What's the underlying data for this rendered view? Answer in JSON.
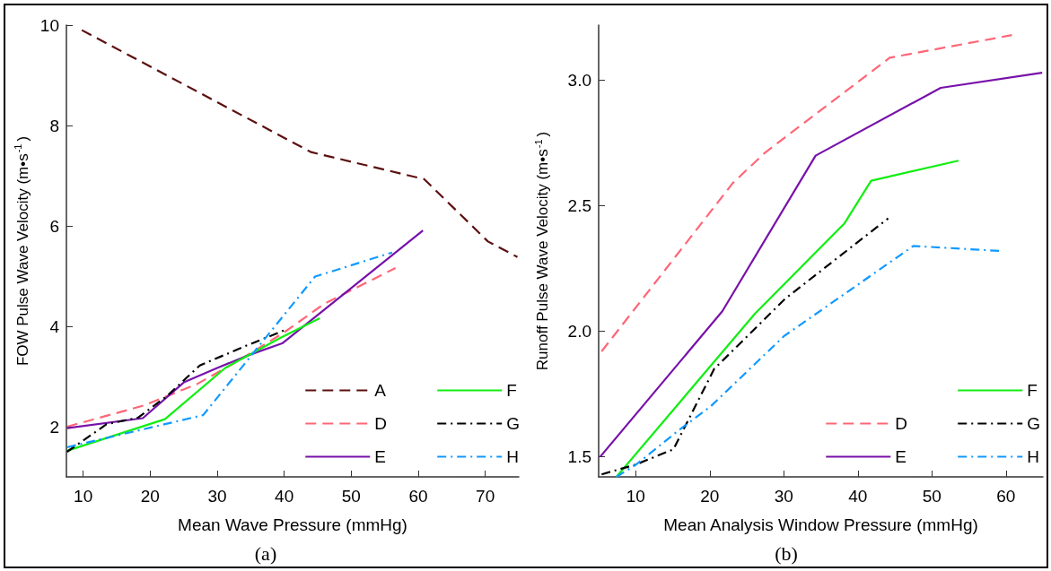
{
  "chart_data": [
    {
      "type": "line",
      "xlabel": "Mean Wave Pressure (mmHg)",
      "ylabel": "FOW Pulse Wave Velocity (m•s$^{-1}$)",
      "xlim": [
        7.5,
        75
      ],
      "xticks": [
        10,
        20,
        30,
        40,
        50,
        60,
        70
      ],
      "ylim": [
        1,
        10
      ],
      "yticks": [
        2,
        4,
        6,
        8,
        10
      ],
      "grid": false,
      "legend": "bottom right",
      "marker": "none",
      "annotations": [
        "(a)"
      ],
      "series": [
        {
          "name": "A",
          "color": "#5c1010",
          "line_style": "dashed",
          "x": [
            9.8,
            44,
            60.9,
            70.4,
            74.8
          ],
          "values": [
            9.9,
            7.47,
            6.93,
            5.69,
            5.38
          ]
        },
        {
          "name": "D",
          "color": "#ff6677",
          "line_style": "dashed",
          "x": [
            7.6,
            19,
            27,
            33,
            40,
            46,
            56.6
          ],
          "values": [
            2.0,
            2.42,
            2.85,
            3.3,
            3.88,
            4.45,
            5.16
          ]
        },
        {
          "name": "E",
          "color": "#7711aa",
          "line_style": "solid",
          "x": [
            7.6,
            18.9,
            25.1,
            30,
            35,
            39.7,
            50,
            60.7
          ],
          "values": [
            1.97,
            2.17,
            2.89,
            3.17,
            3.44,
            3.66,
            4.76,
            5.91
          ]
        },
        {
          "name": "F",
          "color": "#11ee11",
          "line_style": "solid",
          "x": [
            7.6,
            22.2,
            31.2,
            39.6,
            45.3
          ],
          "values": [
            1.52,
            2.15,
            3.17,
            3.78,
            4.16
          ]
        },
        {
          "name": "G",
          "color": "#000000",
          "line_style": "dashdot",
          "x": [
            7.6,
            13.5,
            18.2,
            22.5,
            27.4,
            34.1,
            40.2
          ],
          "values": [
            1.5,
            2.05,
            2.18,
            2.61,
            3.22,
            3.6,
            3.93
          ]
        },
        {
          "name": "H",
          "color": "#1199ff",
          "line_style": "dashdot",
          "x": [
            7.6,
            18.7,
            27.9,
            44.6,
            56.1
          ],
          "values": [
            1.59,
            1.94,
            2.23,
            4.99,
            5.47
          ]
        }
      ]
    },
    {
      "type": "line",
      "xlabel": "Mean Analysis Window Pressure (mmHg)",
      "ylabel": "Runoff Pulse Wave Velocity (m•s$^{-1}$)",
      "xlim": [
        5,
        65
      ],
      "xticks": [
        10,
        20,
        30,
        40,
        50,
        60
      ],
      "ylim": [
        1.42,
        3.22
      ],
      "yticks": [
        1.5,
        {
          "value": 2,
          "label": "2.0"
        },
        2.5,
        {
          "value": 3,
          "label": "3.0"
        }
      ],
      "grid": false,
      "legend": "bottom right",
      "marker": "none",
      "annotations": [
        "(b)"
      ],
      "series": [
        {
          "name": "D",
          "color": "#ff6677",
          "line_style": "dashed",
          "x": [
            5.4,
            23.1,
            27.4,
            44.3,
            60.8
          ],
          "values": [
            1.92,
            2.59,
            2.71,
            3.09,
            3.18
          ]
        },
        {
          "name": "E",
          "color": "#7711aa",
          "line_style": "solid",
          "x": [
            5.2,
            21.7,
            34.3,
            51.2,
            64.9
          ],
          "values": [
            1.5,
            2.08,
            2.7,
            2.97,
            3.03
          ]
        },
        {
          "name": "F",
          "color": "#11ee11",
          "line_style": "solid",
          "x": [
            7.4,
            26.1,
            38.2,
            41.8,
            53.6
          ],
          "values": [
            1.42,
            2.07,
            2.43,
            2.6,
            2.68
          ]
        },
        {
          "name": "G",
          "color": "#000000",
          "line_style": "dashdot",
          "x": [
            5.4,
            10.1,
            15.1,
            20.6,
            30.2,
            44.1
          ],
          "values": [
            1.43,
            1.47,
            1.53,
            1.85,
            2.13,
            2.45
          ]
        },
        {
          "name": "H",
          "color": "#1199ff",
          "line_style": "dashdot",
          "x": [
            7.4,
            10.1,
            16,
            20.1,
            30,
            47.5,
            59.4
          ],
          "values": [
            1.42,
            1.47,
            1.61,
            1.7,
            1.98,
            2.34,
            2.32
          ]
        }
      ]
    }
  ]
}
